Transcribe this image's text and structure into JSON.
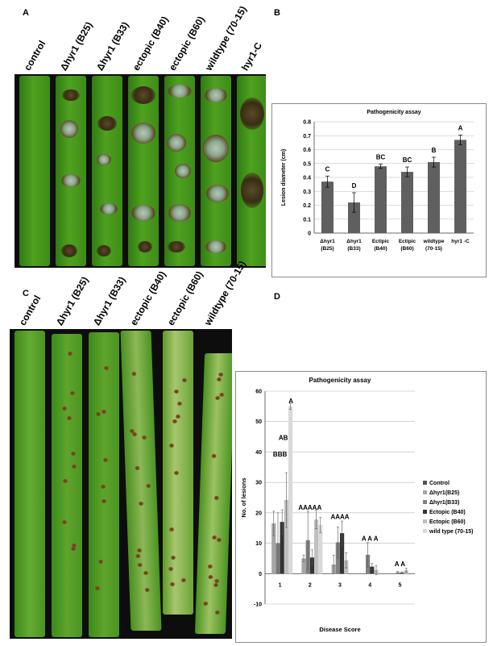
{
  "panels": {
    "a": "A",
    "b": "B",
    "c": "C",
    "d": "D"
  },
  "photo_a": {
    "labels": [
      "control",
      "Δhyr1 (B25)",
      "Δhyr1 (B33)",
      "ectopic (B40)",
      "ectopic (B60)",
      "wildtype (70-15)",
      "hyr1-C"
    ]
  },
  "photo_c": {
    "labels": [
      "control",
      "Δhyr1 (B25)",
      "Δhyr1 (B33)",
      "ectopic (B40)",
      "ectopic (B60)",
      "wildtype (70-15)"
    ]
  },
  "chart_data": [
    {
      "type": "bar",
      "title": "Pathogenicity assay",
      "ylabel": "Lesion diameter (cm)",
      "xlabel": "",
      "ylim": [
        0,
        0.8
      ],
      "yticks": [
        "0",
        "0.1",
        "0.2",
        "0.3",
        "0.4",
        "0.5",
        "0.6",
        "0.7",
        "0.8"
      ],
      "categories": [
        [
          "Δhyr1",
          "(B25)"
        ],
        [
          "Δhyr1",
          "(B33)"
        ],
        [
          "Ectipic",
          "(B40)"
        ],
        [
          "Ectipic",
          "(B60)"
        ],
        [
          "wildtype",
          "(70-15)"
        ],
        [
          "hyr1 -C"
        ]
      ],
      "values": [
        0.37,
        0.22,
        0.48,
        0.44,
        0.51,
        0.67
      ],
      "errors": [
        0.04,
        0.07,
        0.015,
        0.035,
        0.035,
        0.035
      ],
      "letters": [
        "C",
        "D",
        "BC",
        "BC",
        "B",
        "A"
      ],
      "grid": true,
      "bar_color": "#5f5f5f"
    },
    {
      "type": "bar",
      "title": "Pathogenicity assay",
      "ylabel": "No. of lesions",
      "xlabel": "Disease Score",
      "ylim": [
        -10,
        60
      ],
      "yticks": [
        "-10",
        "0",
        "10",
        "20",
        "30",
        "40",
        "50",
        "60"
      ],
      "categories": [
        "1",
        "2",
        "3",
        "4",
        "5"
      ],
      "series": [
        {
          "name": "Control",
          "color": "#505050",
          "values": [
            0,
            0,
            0,
            0,
            0
          ],
          "errors": [
            0,
            0,
            0,
            0,
            0
          ]
        },
        {
          "name": "Δhyr1(B25)",
          "color": "#a6a6a6",
          "values": [
            16.5,
            5.0,
            3.0,
            0,
            0
          ],
          "errors": [
            4.0,
            1.0,
            3.0,
            0,
            0
          ]
        },
        {
          "name": "Δhyr1(B33)",
          "color": "#808080",
          "values": [
            10.0,
            11.0,
            10.3,
            6.2,
            0.4
          ],
          "errors": [
            10.0,
            9.5,
            5.0,
            4.0,
            0.3
          ]
        },
        {
          "name": "Ectopic (B40)",
          "color": "#333333",
          "values": [
            17.0,
            5.3,
            13.3,
            2.3,
            0.3
          ],
          "errors": [
            4.0,
            2.5,
            4.0,
            1.0,
            0.3
          ]
        },
        {
          "name": "Ectopic (B60)",
          "color": "#c0c0c0",
          "values": [
            24.2,
            17.8,
            4.4,
            1.2,
            1.1
          ],
          "errors": [
            9.0,
            3.0,
            2.5,
            1.5,
            0.6
          ]
        },
        {
          "name": "wild type (70-15)",
          "color": "#d9d9d9",
          "values": [
            55.0,
            16.0,
            0,
            0,
            0
          ],
          "errors": [
            1.0,
            2.5,
            0,
            0,
            0
          ]
        }
      ],
      "group_labels": [
        [
          {
            "text": "A",
            "x": 55.0,
            "y": 56.0
          },
          {
            "text": "AB",
            "x": 24.2,
            "y": 44.0
          },
          {
            "text": "BBB",
            "x": 16.5,
            "y": 38.5
          }
        ],
        [
          {
            "text": "AAAAA",
            "x": 17.8,
            "y": 21.0
          }
        ],
        [
          {
            "text": "AAAA",
            "x": 13.3,
            "y": 18.0
          }
        ],
        [
          {
            "text": "A A A",
            "x": 6.2,
            "y": 10.8
          }
        ],
        [
          {
            "text": "A A",
            "x": 1.1,
            "y": 2.5
          }
        ]
      ],
      "legend_position": "right",
      "grid": true
    }
  ]
}
